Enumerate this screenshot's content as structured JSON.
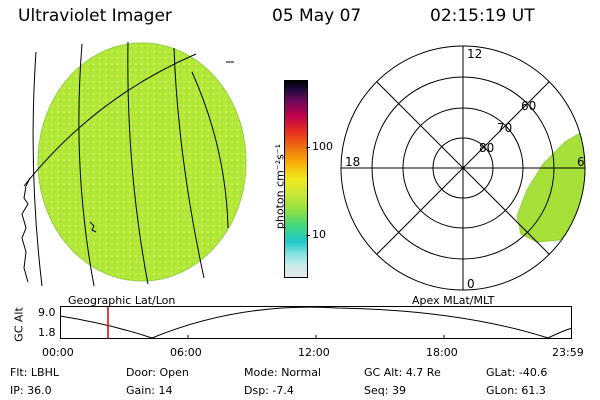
{
  "header": {
    "instrument": "Ultraviolet Imager",
    "date": "05 May 07",
    "time": "02:15:19 UT"
  },
  "panels": {
    "left_label": "Geographic Lat/Lon",
    "right_label": "Apex MLat/MLT"
  },
  "colorbar": {
    "unit_label": "photon cm⁻²s⁻¹",
    "tick_100": "100",
    "tick_10": "10"
  },
  "polar": {
    "mlt_top": "12",
    "mlt_left": "18",
    "mlt_right": "6",
    "mlt_bottom": "0",
    "lat_80": "80",
    "lat_70": "70",
    "lat_60": "60"
  },
  "altitude_plot": {
    "ylabel": "GC Alt",
    "ytick_top": "9.0",
    "ytick_bottom": "1.8",
    "xticks": [
      "00:00",
      "06:00",
      "12:00",
      "18:00",
      "23:59"
    ],
    "marker_color": "#e00000"
  },
  "footer": {
    "row1": [
      {
        "label": "Flt:",
        "value": "LBHL"
      },
      {
        "label": "Door:",
        "value": "Open"
      },
      {
        "label": "Mode:",
        "value": "Normal"
      },
      {
        "label": "GC Alt:",
        "value": "4.7 Re"
      },
      {
        "label": "GLat:",
        "value": "-40.6"
      }
    ],
    "row2": [
      {
        "label": "IP:",
        "value": "36.0"
      },
      {
        "label": "Gain:",
        "value": "14"
      },
      {
        "label": "Dsp:",
        "value": "-7.4"
      },
      {
        "label": "Seq:",
        "value": "39"
      },
      {
        "label": "GLon:",
        "value": "61.3"
      }
    ]
  },
  "colors": {
    "disk_fill": "#b2e83a",
    "disk_speckle": "#c9ee48",
    "oval_fill": "#a8e03a"
  }
}
